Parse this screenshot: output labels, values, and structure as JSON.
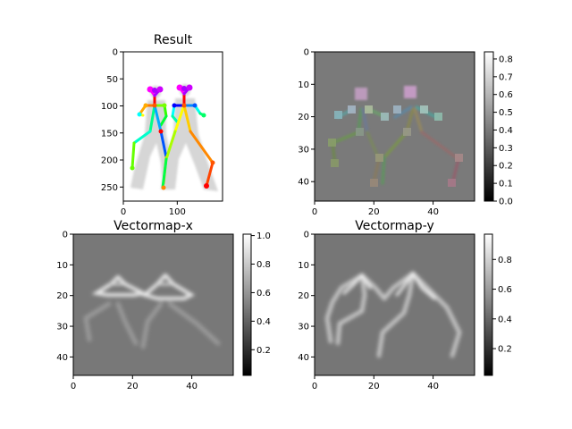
{
  "figure": {
    "background": "#ffffff"
  },
  "chart_data": [
    {
      "type": "heatmap",
      "title": "Result",
      "content": "pose-skeleton-overlay",
      "xticks": [
        0,
        100
      ],
      "yticks": [
        0,
        50,
        100,
        150,
        200,
        250
      ],
      "xlim": [
        0,
        184
      ],
      "ylim": [
        0,
        276
      ],
      "colorbar": null
    },
    {
      "type": "heatmap",
      "title": "",
      "content": "pose-heatmap",
      "xticks": [
        0,
        20,
        40
      ],
      "yticks": [
        0,
        10,
        20,
        30,
        40
      ],
      "xlim": [
        0,
        54
      ],
      "ylim": [
        0,
        46
      ],
      "colorbar": {
        "ticks": [
          0.0,
          0.1,
          0.2,
          0.3,
          0.4,
          0.5,
          0.6,
          0.7,
          0.8
        ],
        "range": [
          0,
          0.84
        ],
        "colormap": "gray"
      }
    },
    {
      "type": "heatmap",
      "title": "Vectormap-x",
      "content": "vector-field-x",
      "xticks": [
        0,
        20,
        40
      ],
      "yticks": [
        0,
        10,
        20,
        30,
        40
      ],
      "xlim": [
        0,
        54
      ],
      "ylim": [
        0,
        46
      ],
      "colorbar": {
        "ticks": [
          0.2,
          0.4,
          0.6,
          0.8,
          1.0
        ],
        "range": [
          0.02,
          1.01
        ],
        "colormap": "gray"
      }
    },
    {
      "type": "heatmap",
      "title": "Vectormap-y",
      "content": "vector-field-y",
      "xticks": [
        0,
        20,
        40
      ],
      "yticks": [
        0,
        10,
        20,
        30,
        40
      ],
      "xlim": [
        0,
        54
      ],
      "ylim": [
        0,
        46
      ],
      "colorbar": {
        "ticks": [
          0.2,
          0.4,
          0.6,
          0.8
        ],
        "range": [
          0.02,
          0.97
        ],
        "colormap": "gray"
      }
    }
  ]
}
